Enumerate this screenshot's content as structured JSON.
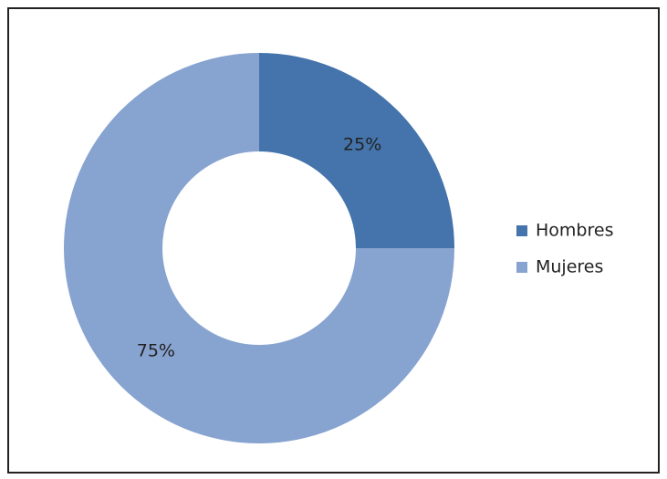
{
  "chart_data": {
    "type": "donut",
    "categories": [
      "Hombres",
      "Mujeres"
    ],
    "values": [
      25,
      75
    ],
    "value_labels": [
      "25%",
      "75%"
    ],
    "colors": [
      "#4474ab",
      "#87a3d0"
    ],
    "legend": "right"
  }
}
